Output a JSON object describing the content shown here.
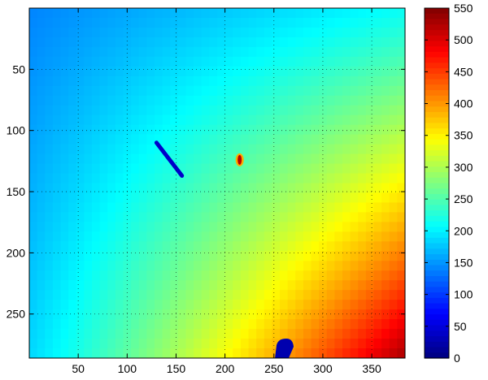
{
  "chart_data": {
    "type": "heatmap",
    "title": "",
    "xlabel": "",
    "ylabel": "",
    "xlim": [
      0,
      384
    ],
    "ylim": [
      0,
      286
    ],
    "y_reversed": true,
    "grid": true,
    "grid_style": "dotted",
    "x_ticks": [
      50,
      100,
      150,
      200,
      250,
      300,
      350
    ],
    "x_tick_labels": [
      "50",
      "100",
      "150",
      "200",
      "250",
      "300",
      "350"
    ],
    "y_ticks": [
      50,
      100,
      150,
      200,
      250
    ],
    "y_tick_labels": [
      "50",
      "100",
      "150",
      "200",
      "250"
    ],
    "colorbar": {
      "colormap": "jet",
      "range": [
        0,
        550
      ],
      "ticks": [
        0,
        50,
        100,
        150,
        200,
        250,
        300,
        350,
        400,
        450,
        500,
        550
      ],
      "tick_labels": [
        "0",
        "50",
        "100",
        "150",
        "200",
        "250",
        "300",
        "350",
        "400",
        "450",
        "500",
        "550"
      ],
      "placement": "right"
    },
    "field": {
      "description_values": "background intensity increases from top-left toward bottom-right",
      "corner_values": {
        "top_left": 140,
        "top_right": 210,
        "bottom_left": 185,
        "bottom_right": 450
      }
    },
    "features": [
      {
        "kind": "line",
        "from": [
          130,
          110
        ],
        "to": [
          156,
          137
        ],
        "value": 40
      },
      {
        "kind": "blob",
        "x": 215,
        "y": 124,
        "value": 520
      },
      {
        "kind": "blob",
        "x": 261,
        "y": 278,
        "value": 25
      }
    ]
  }
}
